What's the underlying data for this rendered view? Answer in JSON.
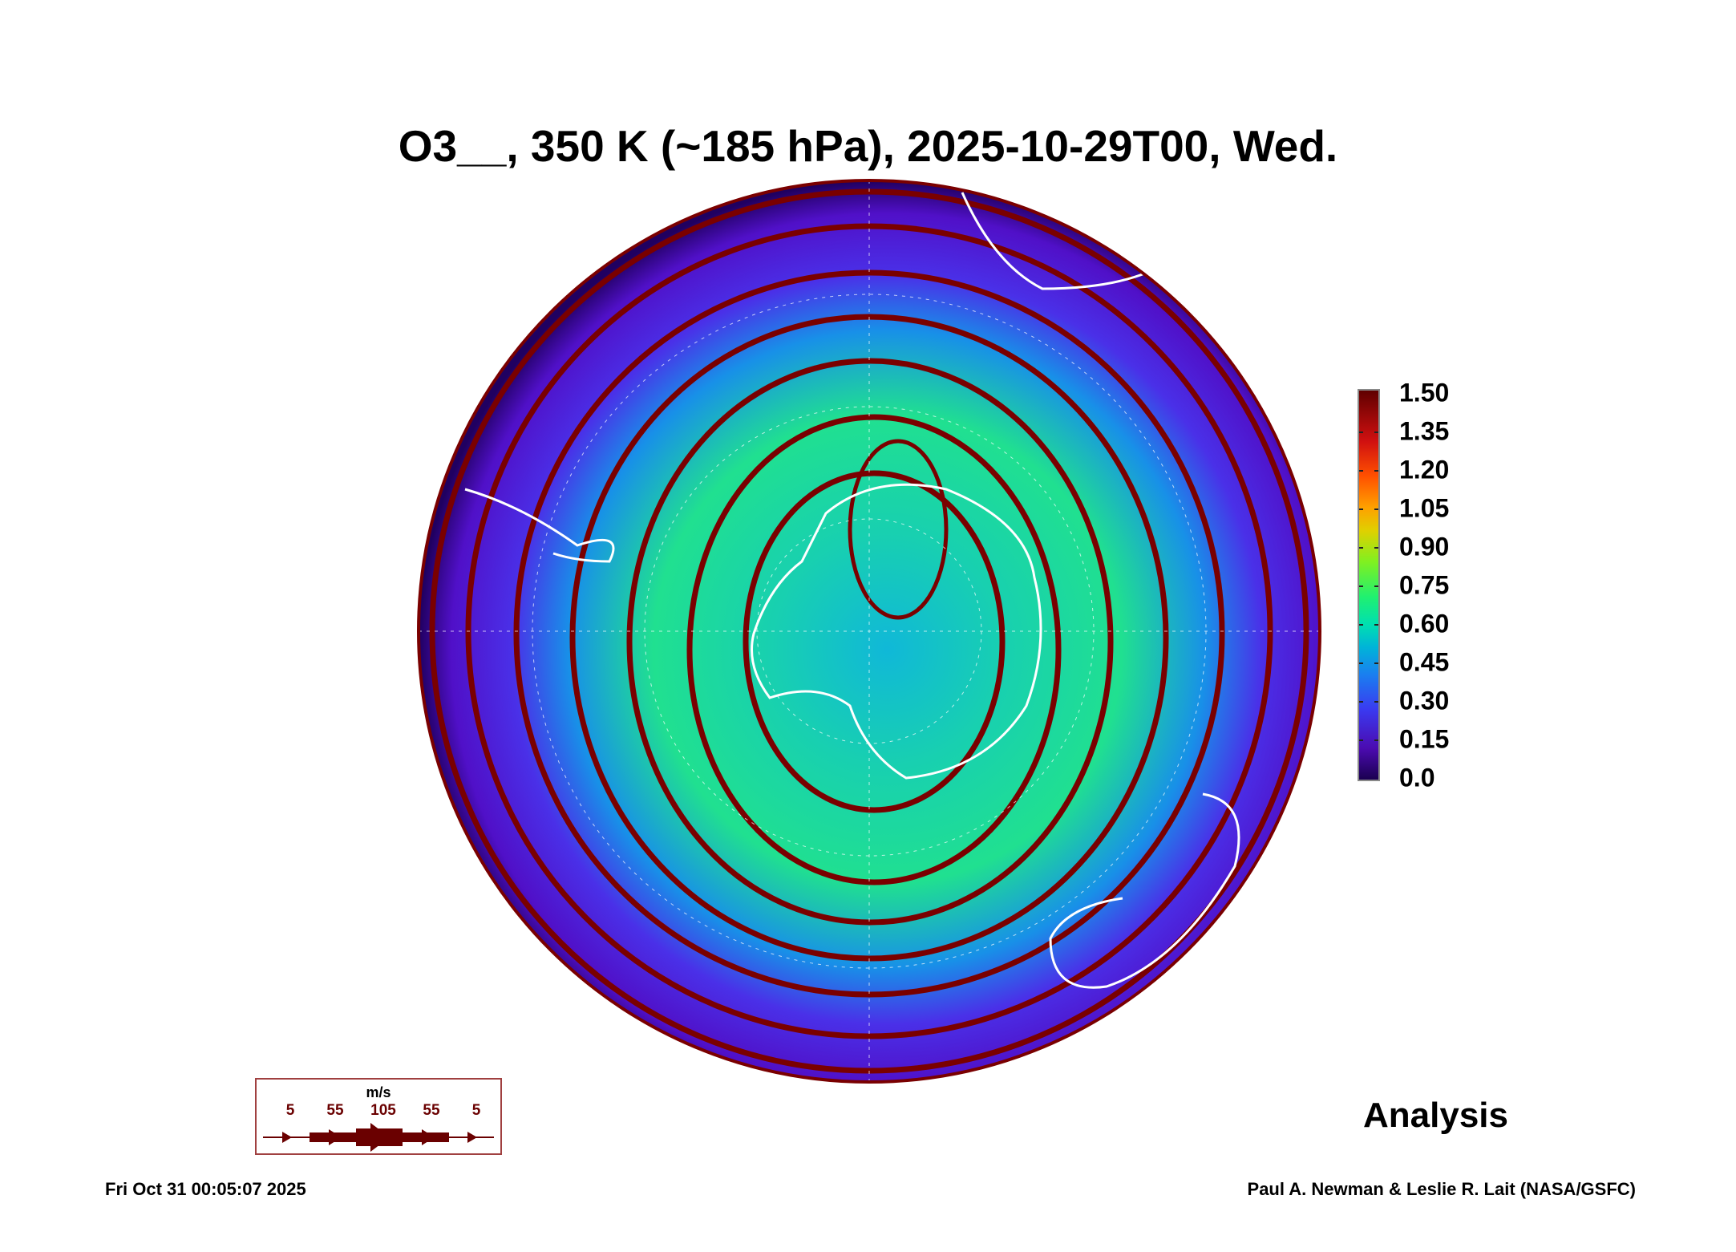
{
  "title": "O3__, 350 K (~185 hPa), 2025-10-29T00, Wed.",
  "colorbar": {
    "ticks": [
      "1.50",
      "1.35",
      "1.20",
      "1.05",
      "0.90",
      "0.75",
      "0.60",
      "0.45",
      "0.30",
      "0.15",
      "0.0"
    ],
    "range": [
      0.0,
      1.5
    ]
  },
  "wind_legend": {
    "unit": "m/s",
    "labels": [
      "5",
      "55",
      "105",
      "55",
      "5"
    ],
    "color": "#6a0000"
  },
  "analysis_label": "Analysis",
  "footer": {
    "timestamp": "Fri Oct 31 00:05:07 2025",
    "credit": "Paul A. Newman & Leslie R. Lait (NASA/GSFC)"
  }
}
